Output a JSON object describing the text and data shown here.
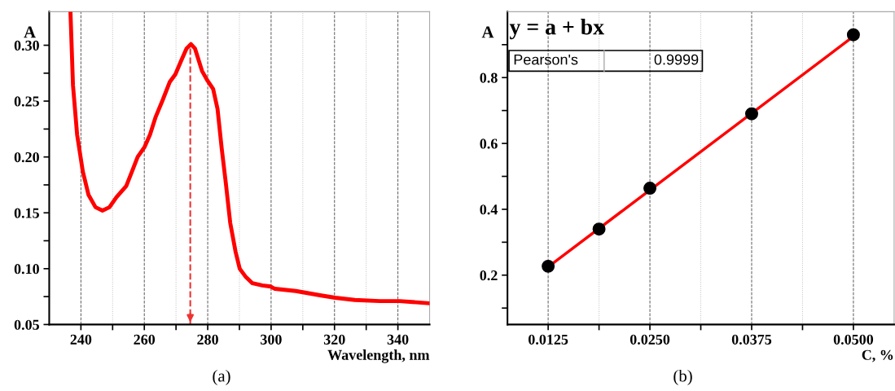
{
  "chart_data": [
    {
      "type": "line",
      "ylabel": "A",
      "xlabel": "Wavelength, nm",
      "annotations": [
        "(a)"
      ],
      "xlim": [
        230,
        350
      ],
      "ylim": [
        0.05,
        0.33
      ],
      "grid": "x",
      "line_style": "solid",
      "marker": "none",
      "xticks": [
        240,
        {
          "value": 250,
          "label": null
        },
        260,
        {
          "value": 270,
          "label": null
        },
        280,
        {
          "value": 290,
          "label": null
        },
        300,
        {
          "value": 310,
          "label": null
        },
        320,
        {
          "value": 330,
          "label": null
        },
        340
      ],
      "yticks": [
        {
          "value": 0.05,
          "label": "0.05"
        },
        {
          "value": 0.075,
          "label": null
        },
        {
          "value": 0.1,
          "label": "0.10"
        },
        {
          "value": 0.125,
          "label": null
        },
        {
          "value": 0.15,
          "label": "0.15"
        },
        {
          "value": 0.175,
          "label": null
        },
        {
          "value": 0.2,
          "label": "0.20"
        },
        {
          "value": 0.225,
          "label": null
        },
        {
          "value": 0.25,
          "label": "0.25"
        },
        {
          "value": 0.275,
          "label": null
        },
        {
          "value": 0.3,
          "label": "0.30"
        }
      ],
      "ref_lines": [
        {
          "axis": "x",
          "value": 274.5,
          "label": null,
          "color": "#ee3333",
          "line_style": "dashed"
        }
      ],
      "series": [
        {
          "color": "#ff0000",
          "x": [
            236.7,
            237.5,
            238.8,
            240.6,
            242.4,
            244.6,
            246.8,
            249.0,
            251.2,
            254.3,
            256.1,
            257.9,
            260.1,
            261.8,
            263.6,
            265.8,
            268.0,
            269.8,
            271.6,
            273.3,
            274.7,
            276.0,
            278.2,
            280.0,
            281.7,
            283.1,
            284.4,
            285.7,
            287.1,
            288.8,
            290.1,
            291.9,
            294.1,
            297.2,
            299.9,
            301.2,
            307.8,
            315.8,
            320.2,
            326.4,
            334.3,
            340.5,
            350
          ],
          "values": [
            0.33,
            0.264,
            0.22,
            0.187,
            0.166,
            0.155,
            0.152,
            0.155,
            0.164,
            0.174,
            0.187,
            0.2,
            0.209,
            0.22,
            0.236,
            0.251,
            0.267,
            0.274,
            0.286,
            0.297,
            0.301,
            0.297,
            0.277,
            0.268,
            0.261,
            0.243,
            0.208,
            0.177,
            0.141,
            0.115,
            0.1,
            0.093,
            0.087,
            0.085,
            0.084,
            0.082,
            0.08,
            0.076,
            0.074,
            0.072,
            0.071,
            0.071,
            0.069
          ]
        }
      ]
    },
    {
      "type": "scatter",
      "ylabel": "A",
      "xlabel": "C, %",
      "annotations": [
        "y = a + bx",
        "Pearson's",
        "0.9999",
        "(b)"
      ],
      "xlim": [
        0.0075,
        0.055
      ],
      "ylim": [
        0.05,
        1.0
      ],
      "grid": "x",
      "xticks": [
        {
          "value": 0.0125,
          "label": "0.0125"
        },
        {
          "value": 0.01875,
          "label": null
        },
        {
          "value": 0.025,
          "label": "0.0250"
        },
        {
          "value": 0.03125,
          "label": null
        },
        {
          "value": 0.0375,
          "label": "0.0375"
        },
        {
          "value": 0.04375,
          "label": null
        },
        {
          "value": 0.05,
          "label": "0.0500"
        }
      ],
      "yticks": [
        {
          "value": 0.1,
          "label": null
        },
        0.2,
        {
          "value": 0.3,
          "label": null
        },
        0.4,
        {
          "value": 0.5,
          "label": null
        },
        0.6,
        {
          "value": 0.7,
          "label": null
        },
        0.8,
        {
          "value": 0.9,
          "label": null
        }
      ],
      "series": [
        {
          "type": "line",
          "color": "#ff0000",
          "x": [
            0.0125,
            0.05
          ],
          "values": [
            0.225,
            0.925
          ]
        },
        {
          "type": "scatter",
          "marker": "circle",
          "color": "#000000",
          "x": [
            0.0125,
            0.01875,
            0.025,
            0.0375,
            0.05
          ],
          "values": [
            0.227,
            0.34,
            0.464,
            0.69,
            0.93
          ]
        }
      ]
    }
  ]
}
